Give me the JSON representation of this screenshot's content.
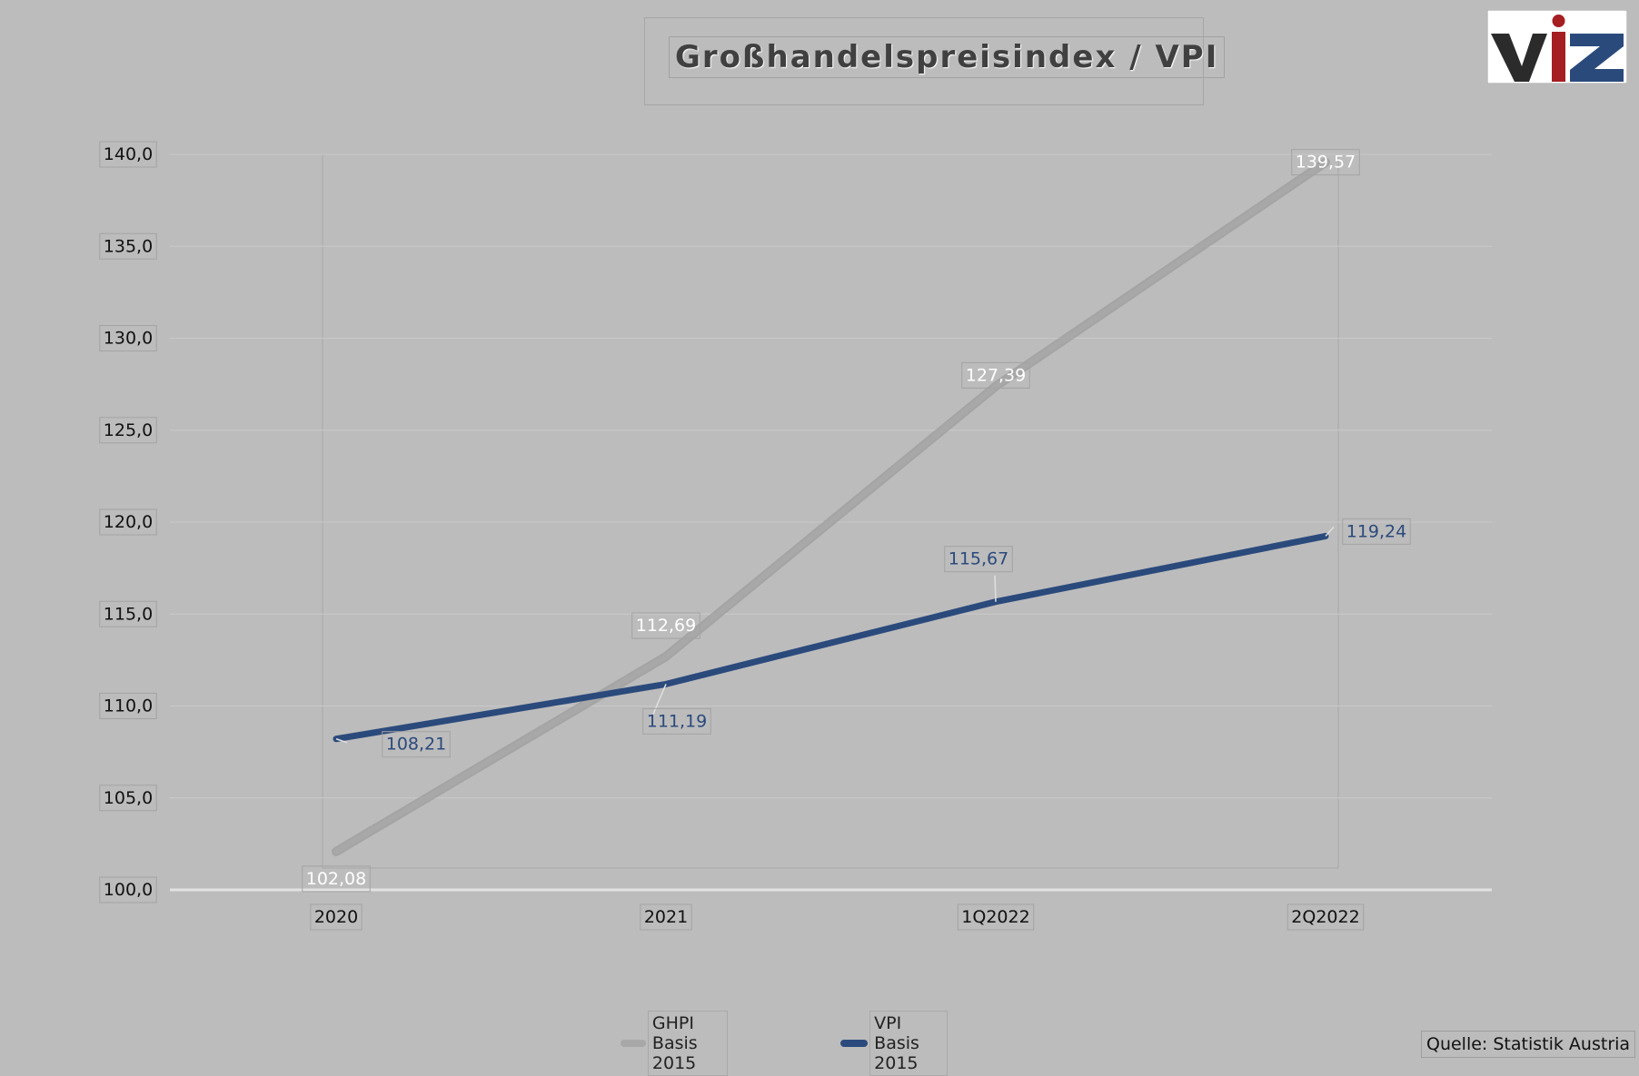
{
  "chart_data": {
    "type": "line",
    "title": "Großhandelspreisindex / VPI",
    "categories": [
      "2020",
      "2021",
      "1Q2022",
      "2Q2022"
    ],
    "series": [
      {
        "name": "GHPI Basis 2015",
        "values": [
          102.08,
          112.69,
          127.39,
          139.57
        ],
        "labels": [
          "102,08",
          "112,69",
          "127,39",
          "139,57"
        ],
        "color": "#a8a8a8",
        "label_color": "#ffffff"
      },
      {
        "name": "VPI Basis 2015",
        "values": [
          108.21,
          111.19,
          115.67,
          119.24
        ],
        "labels": [
          "108,21",
          "111,19",
          "115,67",
          "119,24"
        ],
        "color": "#2b4a7c",
        "label_color": "#2b4a7c"
      }
    ],
    "ylim": [
      100,
      140
    ],
    "yticks": [
      100,
      105,
      110,
      115,
      120,
      125,
      130,
      135,
      140
    ],
    "ytick_labels": [
      "100,0",
      "105,0",
      "110,0",
      "115,0",
      "120,0",
      "125,0",
      "130,0",
      "135,0",
      "140,0"
    ],
    "grid": true,
    "legend": "bottom"
  },
  "logo": {
    "text": "ViZ",
    "colors": {
      "dark": "#2b2b2b",
      "red": "#a51e22",
      "blue": "#2b4a7c"
    }
  },
  "source": "Quelle: Statistik Austria"
}
